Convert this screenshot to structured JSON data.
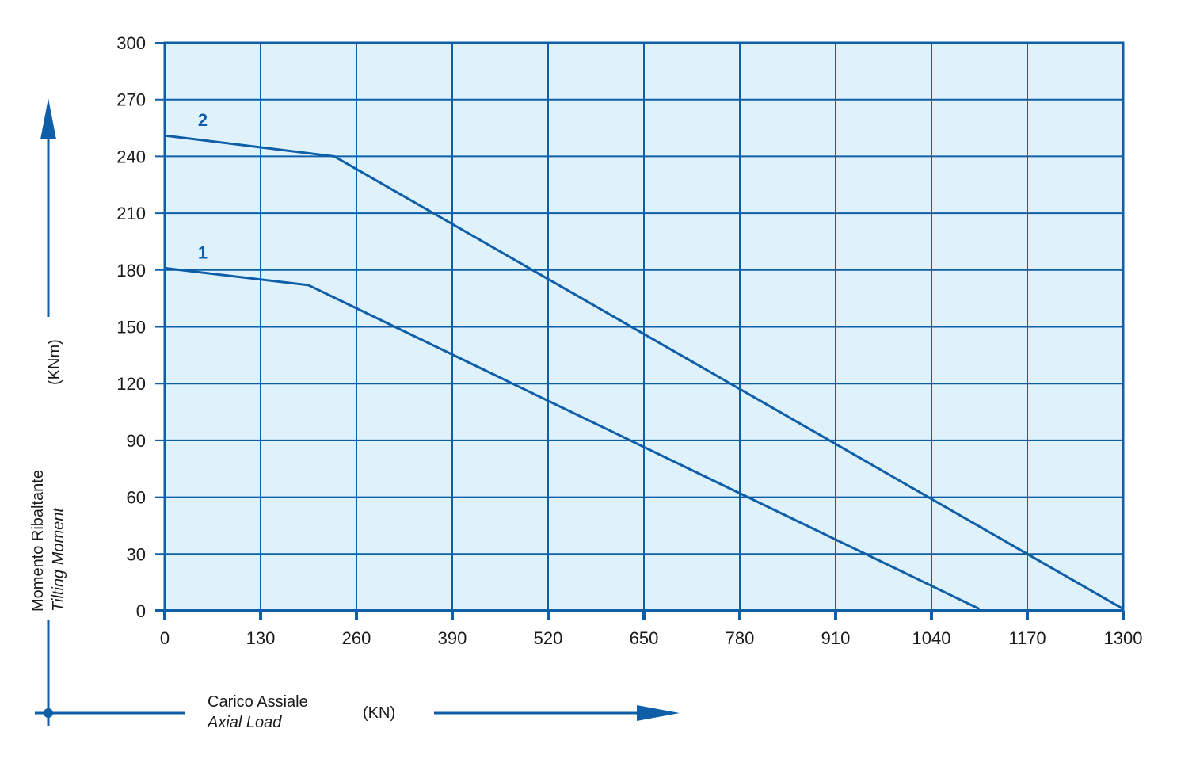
{
  "colors": {
    "plot_background": "#dff2fb",
    "grid": "#0f5ea8",
    "series_line": "#0f5ea8",
    "text": "#1a1a1a"
  },
  "chart_data": {
    "type": "line",
    "xlim": [
      0,
      1300
    ],
    "ylim": [
      0,
      300
    ],
    "x_ticks": [
      0,
      130,
      260,
      390,
      520,
      650,
      780,
      910,
      1040,
      1170,
      1300
    ],
    "y_ticks": [
      0,
      30,
      60,
      90,
      120,
      150,
      180,
      210,
      240,
      270,
      300
    ],
    "grid": true,
    "xlabel": "Carico Assiale",
    "xlabel_en": "Axial Load",
    "xunit": "(KN)",
    "ylabel": "Momento Ribaltante",
    "ylabel_en": "Tilting Moment",
    "yunit": "(KNm)",
    "series": [
      {
        "name": "1",
        "points": [
          [
            0,
            181
          ],
          [
            195,
            172
          ],
          [
            1105,
            1
          ]
        ]
      },
      {
        "name": "2",
        "points": [
          [
            0,
            251
          ],
          [
            230,
            240
          ],
          [
            1300,
            1
          ]
        ]
      }
    ]
  }
}
